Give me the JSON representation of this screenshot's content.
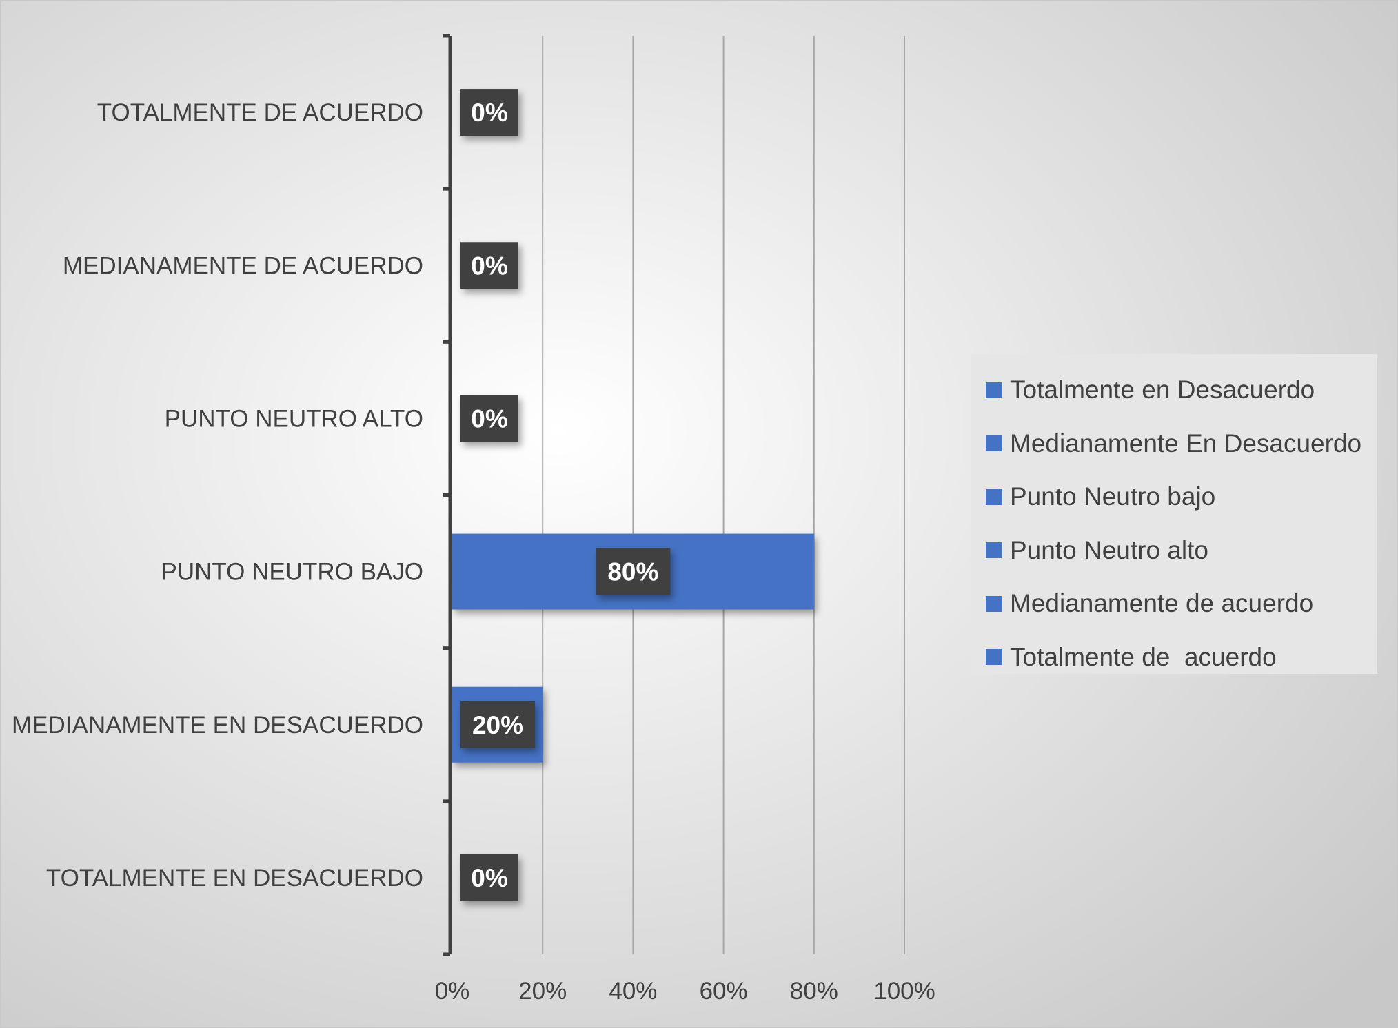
{
  "chart_data": {
    "type": "bar",
    "orientation": "horizontal",
    "categories": [
      "TOTALMENTE EN DESACUERDO",
      "MEDIANAMENTE EN DESACUERDO",
      "PUNTO NEUTRO BAJO",
      "PUNTO NEUTRO ALTO",
      "MEDIANAMENTE DE ACUERDO",
      "TOTALMENTE DE  ACUERDO"
    ],
    "values": [
      0,
      20,
      80,
      0,
      0,
      0
    ],
    "data_labels": [
      "0%",
      "20%",
      "80%",
      "0%",
      "0%",
      "0%"
    ],
    "xlim": [
      0,
      100
    ],
    "x_ticks": [
      "0%",
      "20%",
      "40%",
      "60%",
      "80%",
      "100%"
    ],
    "grid": true,
    "legend": {
      "placement": "right",
      "entries": [
        "Totalmente en Desacuerdo",
        "Medianamente En Desacuerdo",
        "Punto Neutro bajo",
        "Punto Neutro alto",
        "Medianamente de acuerdo",
        "Totalmente de  acuerdo"
      ]
    },
    "colors": {
      "bar": "#4472c4",
      "data_label_bg": "#404040",
      "axis": "#404040",
      "grid": "#a6a6a6",
      "background_light": "#ffffff",
      "background_dark": "#c8c8c8",
      "legend_bg": "#e6e6e6"
    }
  }
}
